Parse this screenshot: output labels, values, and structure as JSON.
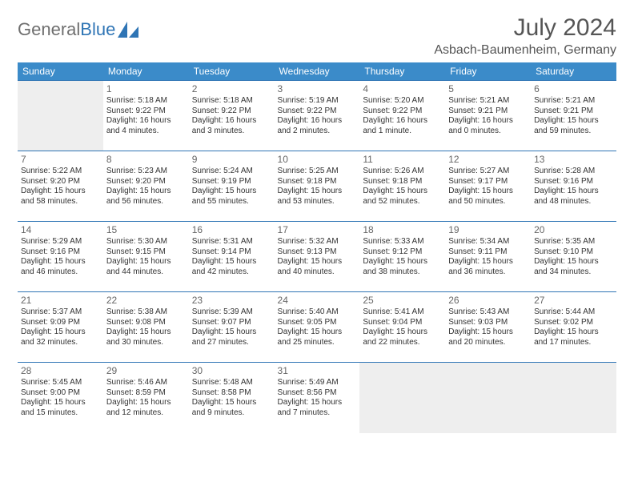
{
  "brand": {
    "part1": "General",
    "part2": "Blue"
  },
  "title": "July 2024",
  "location": "Asbach-Baumenheim, Germany",
  "colors": {
    "header_bg": "#3b8bc9",
    "border": "#2f75b5",
    "empty_bg": "#eeeeee",
    "text": "#333333",
    "muted": "#666666"
  },
  "typography": {
    "body_pt": 10,
    "daynum_pt": 12,
    "title_pt": 30,
    "location_pt": 16
  },
  "weekdays": [
    "Sunday",
    "Monday",
    "Tuesday",
    "Wednesday",
    "Thursday",
    "Friday",
    "Saturday"
  ],
  "weeks": [
    [
      null,
      {
        "n": "1",
        "sr": "Sunrise: 5:18 AM",
        "ss": "Sunset: 9:22 PM",
        "d1": "Daylight: 16 hours",
        "d2": "and 4 minutes."
      },
      {
        "n": "2",
        "sr": "Sunrise: 5:18 AM",
        "ss": "Sunset: 9:22 PM",
        "d1": "Daylight: 16 hours",
        "d2": "and 3 minutes."
      },
      {
        "n": "3",
        "sr": "Sunrise: 5:19 AM",
        "ss": "Sunset: 9:22 PM",
        "d1": "Daylight: 16 hours",
        "d2": "and 2 minutes."
      },
      {
        "n": "4",
        "sr": "Sunrise: 5:20 AM",
        "ss": "Sunset: 9:22 PM",
        "d1": "Daylight: 16 hours",
        "d2": "and 1 minute."
      },
      {
        "n": "5",
        "sr": "Sunrise: 5:21 AM",
        "ss": "Sunset: 9:21 PM",
        "d1": "Daylight: 16 hours",
        "d2": "and 0 minutes."
      },
      {
        "n": "6",
        "sr": "Sunrise: 5:21 AM",
        "ss": "Sunset: 9:21 PM",
        "d1": "Daylight: 15 hours",
        "d2": "and 59 minutes."
      }
    ],
    [
      {
        "n": "7",
        "sr": "Sunrise: 5:22 AM",
        "ss": "Sunset: 9:20 PM",
        "d1": "Daylight: 15 hours",
        "d2": "and 58 minutes."
      },
      {
        "n": "8",
        "sr": "Sunrise: 5:23 AM",
        "ss": "Sunset: 9:20 PM",
        "d1": "Daylight: 15 hours",
        "d2": "and 56 minutes."
      },
      {
        "n": "9",
        "sr": "Sunrise: 5:24 AM",
        "ss": "Sunset: 9:19 PM",
        "d1": "Daylight: 15 hours",
        "d2": "and 55 minutes."
      },
      {
        "n": "10",
        "sr": "Sunrise: 5:25 AM",
        "ss": "Sunset: 9:18 PM",
        "d1": "Daylight: 15 hours",
        "d2": "and 53 minutes."
      },
      {
        "n": "11",
        "sr": "Sunrise: 5:26 AM",
        "ss": "Sunset: 9:18 PM",
        "d1": "Daylight: 15 hours",
        "d2": "and 52 minutes."
      },
      {
        "n": "12",
        "sr": "Sunrise: 5:27 AM",
        "ss": "Sunset: 9:17 PM",
        "d1": "Daylight: 15 hours",
        "d2": "and 50 minutes."
      },
      {
        "n": "13",
        "sr": "Sunrise: 5:28 AM",
        "ss": "Sunset: 9:16 PM",
        "d1": "Daylight: 15 hours",
        "d2": "and 48 minutes."
      }
    ],
    [
      {
        "n": "14",
        "sr": "Sunrise: 5:29 AM",
        "ss": "Sunset: 9:16 PM",
        "d1": "Daylight: 15 hours",
        "d2": "and 46 minutes."
      },
      {
        "n": "15",
        "sr": "Sunrise: 5:30 AM",
        "ss": "Sunset: 9:15 PM",
        "d1": "Daylight: 15 hours",
        "d2": "and 44 minutes."
      },
      {
        "n": "16",
        "sr": "Sunrise: 5:31 AM",
        "ss": "Sunset: 9:14 PM",
        "d1": "Daylight: 15 hours",
        "d2": "and 42 minutes."
      },
      {
        "n": "17",
        "sr": "Sunrise: 5:32 AM",
        "ss": "Sunset: 9:13 PM",
        "d1": "Daylight: 15 hours",
        "d2": "and 40 minutes."
      },
      {
        "n": "18",
        "sr": "Sunrise: 5:33 AM",
        "ss": "Sunset: 9:12 PM",
        "d1": "Daylight: 15 hours",
        "d2": "and 38 minutes."
      },
      {
        "n": "19",
        "sr": "Sunrise: 5:34 AM",
        "ss": "Sunset: 9:11 PM",
        "d1": "Daylight: 15 hours",
        "d2": "and 36 minutes."
      },
      {
        "n": "20",
        "sr": "Sunrise: 5:35 AM",
        "ss": "Sunset: 9:10 PM",
        "d1": "Daylight: 15 hours",
        "d2": "and 34 minutes."
      }
    ],
    [
      {
        "n": "21",
        "sr": "Sunrise: 5:37 AM",
        "ss": "Sunset: 9:09 PM",
        "d1": "Daylight: 15 hours",
        "d2": "and 32 minutes."
      },
      {
        "n": "22",
        "sr": "Sunrise: 5:38 AM",
        "ss": "Sunset: 9:08 PM",
        "d1": "Daylight: 15 hours",
        "d2": "and 30 minutes."
      },
      {
        "n": "23",
        "sr": "Sunrise: 5:39 AM",
        "ss": "Sunset: 9:07 PM",
        "d1": "Daylight: 15 hours",
        "d2": "and 27 minutes."
      },
      {
        "n": "24",
        "sr": "Sunrise: 5:40 AM",
        "ss": "Sunset: 9:05 PM",
        "d1": "Daylight: 15 hours",
        "d2": "and 25 minutes."
      },
      {
        "n": "25",
        "sr": "Sunrise: 5:41 AM",
        "ss": "Sunset: 9:04 PM",
        "d1": "Daylight: 15 hours",
        "d2": "and 22 minutes."
      },
      {
        "n": "26",
        "sr": "Sunrise: 5:43 AM",
        "ss": "Sunset: 9:03 PM",
        "d1": "Daylight: 15 hours",
        "d2": "and 20 minutes."
      },
      {
        "n": "27",
        "sr": "Sunrise: 5:44 AM",
        "ss": "Sunset: 9:02 PM",
        "d1": "Daylight: 15 hours",
        "d2": "and 17 minutes."
      }
    ],
    [
      {
        "n": "28",
        "sr": "Sunrise: 5:45 AM",
        "ss": "Sunset: 9:00 PM",
        "d1": "Daylight: 15 hours",
        "d2": "and 15 minutes."
      },
      {
        "n": "29",
        "sr": "Sunrise: 5:46 AM",
        "ss": "Sunset: 8:59 PM",
        "d1": "Daylight: 15 hours",
        "d2": "and 12 minutes."
      },
      {
        "n": "30",
        "sr": "Sunrise: 5:48 AM",
        "ss": "Sunset: 8:58 PM",
        "d1": "Daylight: 15 hours",
        "d2": "and 9 minutes."
      },
      {
        "n": "31",
        "sr": "Sunrise: 5:49 AM",
        "ss": "Sunset: 8:56 PM",
        "d1": "Daylight: 15 hours",
        "d2": "and 7 minutes."
      },
      null,
      null,
      null
    ]
  ]
}
